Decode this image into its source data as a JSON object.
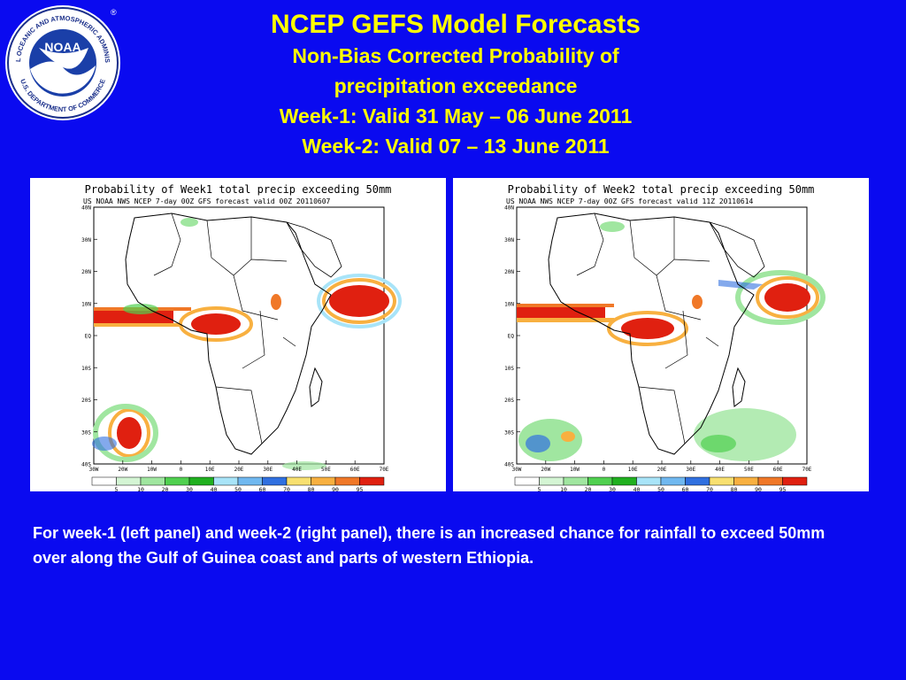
{
  "logo": {
    "ring_text": "NATIONAL OCEANIC AND ATMOSPHERIC ADMINISTRATION",
    "bottom_text": "U.S. DEPARTMENT OF COMMERCE",
    "center_text": "NOAA",
    "icon": "noaa-logo"
  },
  "title": {
    "main": "NCEP GEFS Model Forecasts",
    "line2": "Non-Bias Corrected Probability of",
    "line3": "precipitation exceedance",
    "line4": "Week-1: Valid 31 May – 06 June 2011",
    "line5": "Week-2: Valid 07 – 13 June 2011"
  },
  "panels": [
    {
      "title": "Probability of Week1 total precip exceeding 50mm",
      "subtitle": "US NOAA NWS NCEP 7-day 00Z GFS forecast valid 00Z 20110607"
    },
    {
      "title": "Probability of Week2 total precip exceeding 50mm",
      "subtitle": "US NOAA NWS NCEP 7-day 00Z GFS forecast valid 11Z 20110614"
    }
  ],
  "map_axes": {
    "lat_labels": [
      "40N",
      "30N",
      "20N",
      "10N",
      "EQ",
      "10S",
      "20S",
      "30S",
      "40S"
    ],
    "lon_labels": [
      "30W",
      "20W",
      "10W",
      "0",
      "10E",
      "20E",
      "30E",
      "40E",
      "50E",
      "60E",
      "70E"
    ]
  },
  "colorbar": {
    "labels": [
      "5",
      "10",
      "20",
      "30",
      "40",
      "50",
      "60",
      "70",
      "80",
      "90",
      "95"
    ],
    "colors": [
      "#ffffff",
      "#d4f5d4",
      "#a0e6a0",
      "#50d050",
      "#20b020",
      "#a8e4f8",
      "#70b8f0",
      "#3070e0",
      "#f8e070",
      "#f8b040",
      "#f07828",
      "#e02010"
    ]
  },
  "caption": "For week-1 (left panel) and week-2 (right panel), there is an increased chance for rainfall to exceed 50mm over along the Gulf of Guinea coast and parts of western Ethiopia."
}
